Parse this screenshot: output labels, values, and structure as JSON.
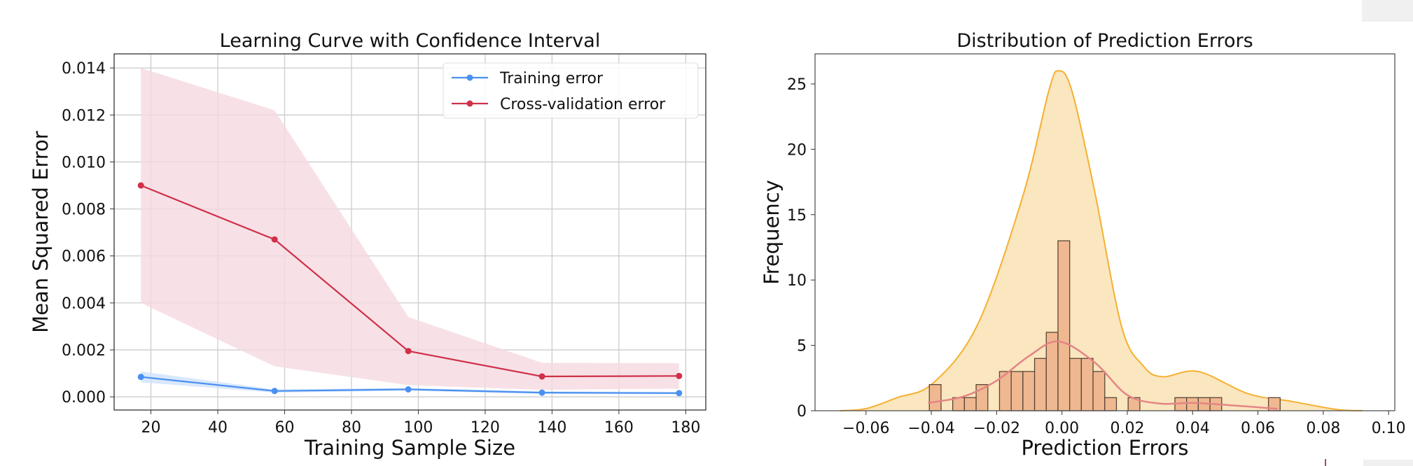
{
  "chart_data": [
    {
      "type": "line",
      "title": "Learning Curve with Confidence Interval",
      "xlabel": "Training Sample Size",
      "ylabel": "Mean Squared Error",
      "xlim": [
        9,
        186
      ],
      "ylim": [
        -0.00056,
        0.0146
      ],
      "xticks": [
        20,
        40,
        60,
        80,
        100,
        120,
        140,
        160,
        180
      ],
      "yticks": [
        "0.000",
        "0.002",
        "0.004",
        "0.006",
        "0.008",
        "0.010",
        "0.012",
        "0.014"
      ],
      "grid": true,
      "legend_position": "top-right",
      "x": [
        17,
        57,
        97,
        137,
        178
      ],
      "series": [
        {
          "name": "Training error",
          "color": "#4a90f0",
          "band_color": "#cfe2fb",
          "values": [
            0.00085,
            0.00025,
            0.00032,
            0.00018,
            0.00016
          ],
          "lower": [
            0.00062,
            0.00018,
            0.00026,
            0.00013,
            0.00011
          ],
          "upper": [
            0.00108,
            0.00032,
            0.00038,
            0.00023,
            0.00021
          ]
        },
        {
          "name": "Cross-validation error",
          "color": "#d0304a",
          "band_color": "#f5dae0",
          "values": [
            0.009,
            0.0067,
            0.00195,
            0.00087,
            0.00089
          ],
          "lower": [
            0.004,
            0.0013,
            0.0005,
            0.0003,
            0.00035
          ],
          "upper": [
            0.014,
            0.0122,
            0.0034,
            0.00145,
            0.00143
          ]
        }
      ]
    },
    {
      "type": "bar",
      "title": "Distribution of Prediction Errors",
      "xlabel": "Prediction Errors",
      "ylabel": "Frequency",
      "xlim": [
        -0.0756,
        0.1019
      ],
      "ylim": [
        0,
        27.3
      ],
      "xticks": [
        "−0.06",
        "−0.04",
        "−0.02",
        "0.00",
        "0.02",
        "0.04",
        "0.06",
        "0.08",
        "0.10"
      ],
      "xtick_values": [
        -0.06,
        -0.04,
        -0.02,
        0,
        0.02,
        0.04,
        0.06,
        0.08,
        0.1
      ],
      "yticks": [
        0,
        5,
        10,
        15,
        20,
        25
      ],
      "grid": false,
      "histogram": {
        "bin_start": -0.0406,
        "bin_width": 0.00358,
        "counts": [
          2,
          0,
          1,
          1,
          2,
          0,
          3,
          3,
          3,
          4,
          6,
          13,
          4,
          4,
          3,
          1,
          0,
          1,
          0,
          0,
          0,
          1,
          1,
          1,
          1,
          0,
          0,
          0,
          0,
          1
        ],
        "color": "#f0b890",
        "edge": "#5a4636"
      },
      "kde_large": {
        "color": "#f5b030",
        "fill": "#fae6bf",
        "x": [
          -0.068,
          -0.06,
          -0.0505,
          -0.0395,
          -0.0258,
          -0.012,
          -0.004,
          -0.001,
          0.003,
          0.01,
          0.0183,
          0.025,
          0.0307,
          0.0417,
          0.057,
          0.0707,
          0.084,
          0.092
        ],
        "y": [
          0,
          0.16,
          1.0,
          2.1,
          6.6,
          16.4,
          24.5,
          26,
          24.5,
          16.8,
          6.4,
          3.4,
          2.6,
          3.0,
          1.3,
          0.7,
          0.1,
          0
        ]
      },
      "kde_small": {
        "color": "#e38585",
        "x": [
          -0.041,
          -0.03,
          -0.02,
          -0.01,
          -0.001,
          0.01,
          0.02,
          0.03,
          0.04,
          0.05,
          0.066
        ],
        "y": [
          0.6,
          1.1,
          2.3,
          4.2,
          5.3,
          3.7,
          1.2,
          0.55,
          0.6,
          0.45,
          0.15
        ]
      }
    }
  ]
}
